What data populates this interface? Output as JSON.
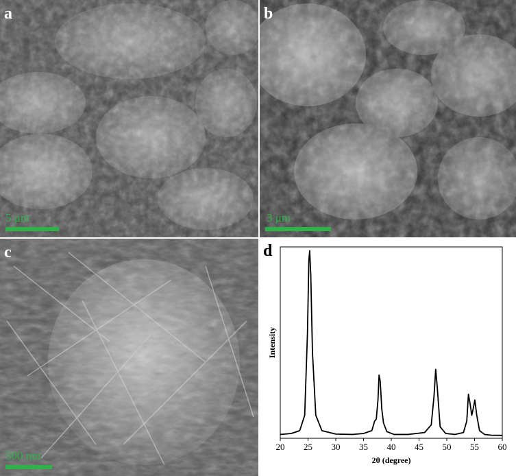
{
  "panels": {
    "a": {
      "label": "a",
      "scale_text": "5 μm"
    },
    "b": {
      "label": "b",
      "scale_text": "3 μm"
    },
    "c": {
      "label": "c",
      "scale_text": "500 nm"
    },
    "d": {
      "label": "d"
    }
  },
  "chart_data": {
    "type": "line",
    "title": "",
    "xlabel": "2θ (degree)",
    "ylabel": "Intensity",
    "xlim": [
      20,
      60
    ],
    "xticks": [
      20,
      25,
      30,
      35,
      40,
      45,
      50,
      55,
      60
    ],
    "ylim": [
      0,
      1
    ],
    "grid": false,
    "legend": "none",
    "series": [
      {
        "x": [
          20,
          22,
          23.5,
          24.4,
          24.9,
          25.15,
          25.3,
          25.5,
          25.8,
          26.4,
          27.5,
          30,
          33,
          35,
          36.5,
          37.0,
          37.3,
          37.6,
          37.8,
          38.0,
          38.3,
          38.6,
          39.2,
          40.5,
          43,
          46,
          47.2,
          47.7,
          48.0,
          48.3,
          48.8,
          49.8,
          51.5,
          53.0,
          53.6,
          53.9,
          54.2,
          54.5,
          54.8,
          55.05,
          55.4,
          55.9,
          56.8,
          58,
          60
        ],
        "y": [
          0.02,
          0.025,
          0.04,
          0.12,
          0.55,
          0.93,
          0.98,
          0.85,
          0.45,
          0.12,
          0.04,
          0.022,
          0.02,
          0.025,
          0.04,
          0.09,
          0.1,
          0.2,
          0.33,
          0.3,
          0.15,
          0.08,
          0.035,
          0.02,
          0.02,
          0.03,
          0.07,
          0.22,
          0.36,
          0.26,
          0.06,
          0.025,
          0.02,
          0.03,
          0.09,
          0.23,
          0.18,
          0.12,
          0.16,
          0.2,
          0.12,
          0.04,
          0.02,
          0.016,
          0.015
        ]
      }
    ]
  }
}
